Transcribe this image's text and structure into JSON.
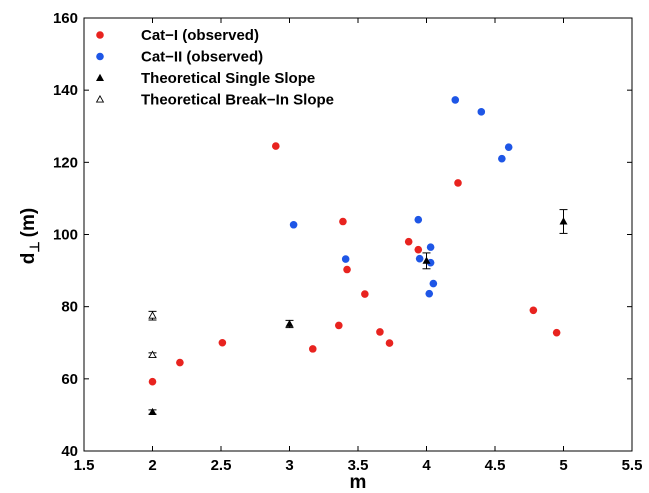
{
  "chart_data": {
    "type": "scatter",
    "xlabel": "m",
    "ylabel": "d",
    "ylabel_sub": "⊥",
    "ylabel_unit": "(m)",
    "xlim": [
      1.5,
      5.5
    ],
    "ylim": [
      40,
      160
    ],
    "xticks": [
      1.5,
      2,
      2.5,
      3,
      3.5,
      4,
      4.5,
      5,
      5.5
    ],
    "xtick_labels": [
      "1.5",
      "2",
      "2.5",
      "3",
      "3.5",
      "4",
      "4.5",
      "5",
      "5.5"
    ],
    "yticks": [
      40,
      60,
      80,
      100,
      120,
      140,
      160
    ],
    "ytick_labels": [
      "40",
      "60",
      "80",
      "100",
      "120",
      "140",
      "160"
    ],
    "grid": false,
    "legend_position": "top-left",
    "series": [
      {
        "name": "Cat−I (observed)",
        "marker": "filled-circle",
        "color": "#e8231f",
        "points": [
          {
            "x": 2.0,
            "y": 59.2
          },
          {
            "x": 2.2,
            "y": 64.5
          },
          {
            "x": 2.51,
            "y": 70.0
          },
          {
            "x": 2.9,
            "y": 124.5
          },
          {
            "x": 3.17,
            "y": 68.3
          },
          {
            "x": 3.36,
            "y": 74.8
          },
          {
            "x": 3.39,
            "y": 103.6
          },
          {
            "x": 3.42,
            "y": 90.3
          },
          {
            "x": 3.55,
            "y": 83.5
          },
          {
            "x": 3.66,
            "y": 73.0
          },
          {
            "x": 3.73,
            "y": 69.9
          },
          {
            "x": 3.87,
            "y": 98.0
          },
          {
            "x": 3.94,
            "y": 95.8
          },
          {
            "x": 4.23,
            "y": 114.3
          },
          {
            "x": 4.78,
            "y": 79.0
          },
          {
            "x": 4.95,
            "y": 72.8
          }
        ]
      },
      {
        "name": "Cat−II (observed)",
        "marker": "filled-circle",
        "color": "#1e56e6",
        "points": [
          {
            "x": 3.03,
            "y": 102.7
          },
          {
            "x": 3.41,
            "y": 93.2
          },
          {
            "x": 3.94,
            "y": 104.1
          },
          {
            "x": 3.95,
            "y": 93.3
          },
          {
            "x": 4.02,
            "y": 83.6
          },
          {
            "x": 4.03,
            "y": 96.5
          },
          {
            "x": 4.03,
            "y": 92.2
          },
          {
            "x": 4.05,
            "y": 86.4
          },
          {
            "x": 4.21,
            "y": 137.3
          },
          {
            "x": 4.4,
            "y": 134.0
          },
          {
            "x": 4.55,
            "y": 121.0
          },
          {
            "x": 4.6,
            "y": 124.2
          }
        ]
      },
      {
        "name": "Theoretical Single Slope",
        "marker": "filled-triangle",
        "color": "#000000",
        "points": [
          {
            "x": 2.0,
            "y": 50.8,
            "err": 0.6
          },
          {
            "x": 3.0,
            "y": 75.2,
            "err": 1.0
          },
          {
            "x": 4.0,
            "y": 92.7,
            "err": 2.2
          },
          {
            "x": 5.0,
            "y": 103.6,
            "err": 3.3
          }
        ]
      },
      {
        "name": "Theoretical Break−In Slope",
        "marker": "open-triangle",
        "color": "#000000",
        "points": [
          {
            "x": 2.0,
            "y": 66.6,
            "err": 0.6
          },
          {
            "x": 2.0,
            "y": 77.5,
            "err": 1.2
          }
        ]
      }
    ]
  }
}
